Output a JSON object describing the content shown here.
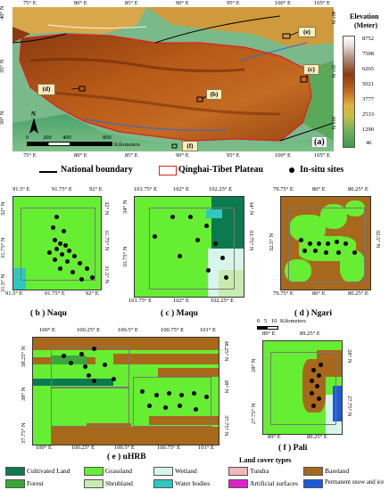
{
  "main_map": {
    "lon_ticks": [
      "75° E",
      "80° E",
      "85° E",
      "90° E",
      "95° E",
      "100° E",
      "105° E"
    ],
    "lat_ticks_left": [
      "40° N",
      "35° N",
      "30° N"
    ],
    "lat_ticks_right": [
      "40° N",
      "35° N",
      "30° N"
    ],
    "elevation_title": "Elevation",
    "elevation_unit": "(Meter)",
    "elevation_values": [
      "8752",
      "7508",
      "6265",
      "5021",
      "3777",
      "2533",
      "1290",
      "46"
    ],
    "scale_labels": [
      "0",
      "200",
      "400",
      "800"
    ],
    "scale_unit": "Kilometers",
    "north_label": "N",
    "panel_label": "(a)",
    "site_letters": [
      "(b)",
      "(c)",
      "(d)",
      "(e)",
      "(f)"
    ]
  },
  "legend_top": {
    "national_boundary": "National boundary",
    "plateau": "Qinghai-Tibet Plateau",
    "sites": "In-situ sites"
  },
  "panels": {
    "b": {
      "caption": "( b ) Naqu",
      "top": [
        "91.5° E",
        "91.75° E",
        "92° E"
      ],
      "bottom": [
        "91.5° E",
        "91.75° E",
        "92° E"
      ],
      "left": [
        "32° N",
        "31.75° N",
        "31.5° N"
      ],
      "right": [
        "32° N",
        "31.75° N",
        "31.5° N"
      ]
    },
    "c": {
      "caption": "( c ) Maqu",
      "top": [
        "101.75° E",
        "102° E",
        "102.25° E"
      ],
      "bottom": [
        "101.75° E",
        "102° E",
        "102.25° E"
      ],
      "left": [
        "34° N",
        "33.75° N",
        "33.5° N"
      ],
      "right": [
        "34° N",
        "33.75° N",
        "33.5° N"
      ]
    },
    "d": {
      "caption": "( d ) Ngari",
      "top": [
        "79.75° E",
        "80° E",
        "80.25° E"
      ],
      "bottom": [
        "79.75° E",
        "80° E",
        "80.25° E"
      ],
      "left": [
        "32.5° N"
      ],
      "right": [
        "32.5° N"
      ]
    },
    "e": {
      "caption": "( e ) uHRB",
      "top": [
        "100° E",
        "100.25° E",
        "100.5° E",
        "100.75° E",
        "101° E"
      ],
      "bottom": [
        "100° E",
        "100.25° E",
        "100.5° E",
        "100.75° E",
        "101° E"
      ],
      "left": [
        "38.25° N",
        "38° N",
        "37.75° N"
      ],
      "right": [
        "38.25° N",
        "38° N",
        "37.75° N"
      ]
    },
    "f": {
      "caption": "( f ) Pali",
      "top": [
        "89° E",
        "89.25° E"
      ],
      "bottom": [
        "89° E",
        "89.25° E"
      ],
      "left": [
        "28° N",
        "27.75° N"
      ],
      "right": [
        "28° N",
        "27.75° N"
      ]
    }
  },
  "small_scale": {
    "labels": [
      "0",
      "5",
      "10"
    ],
    "unit": "Kilometers"
  },
  "land_cover": {
    "title": "Land cover types",
    "items": [
      {
        "label": "Cultivated Land",
        "color": "#0b7a4f"
      },
      {
        "label": "Grassland",
        "color": "#66ee33"
      },
      {
        "label": "Wetland",
        "color": "#d8f5ec"
      },
      {
        "label": "Tundra",
        "color": "#f4b6b6"
      },
      {
        "label": "Bareland",
        "color": "#a8681c"
      },
      {
        "label": "Forest",
        "color": "#3aa63a"
      },
      {
        "label": "Shrubland",
        "color": "#c8ecb0"
      },
      {
        "label": "Water bodies",
        "color": "#2ec8c0"
      },
      {
        "label": "Artificial surfaces",
        "color": "#e020c8"
      },
      {
        "label": "Permanent snow and ice",
        "color": "#1c5adc"
      }
    ]
  }
}
